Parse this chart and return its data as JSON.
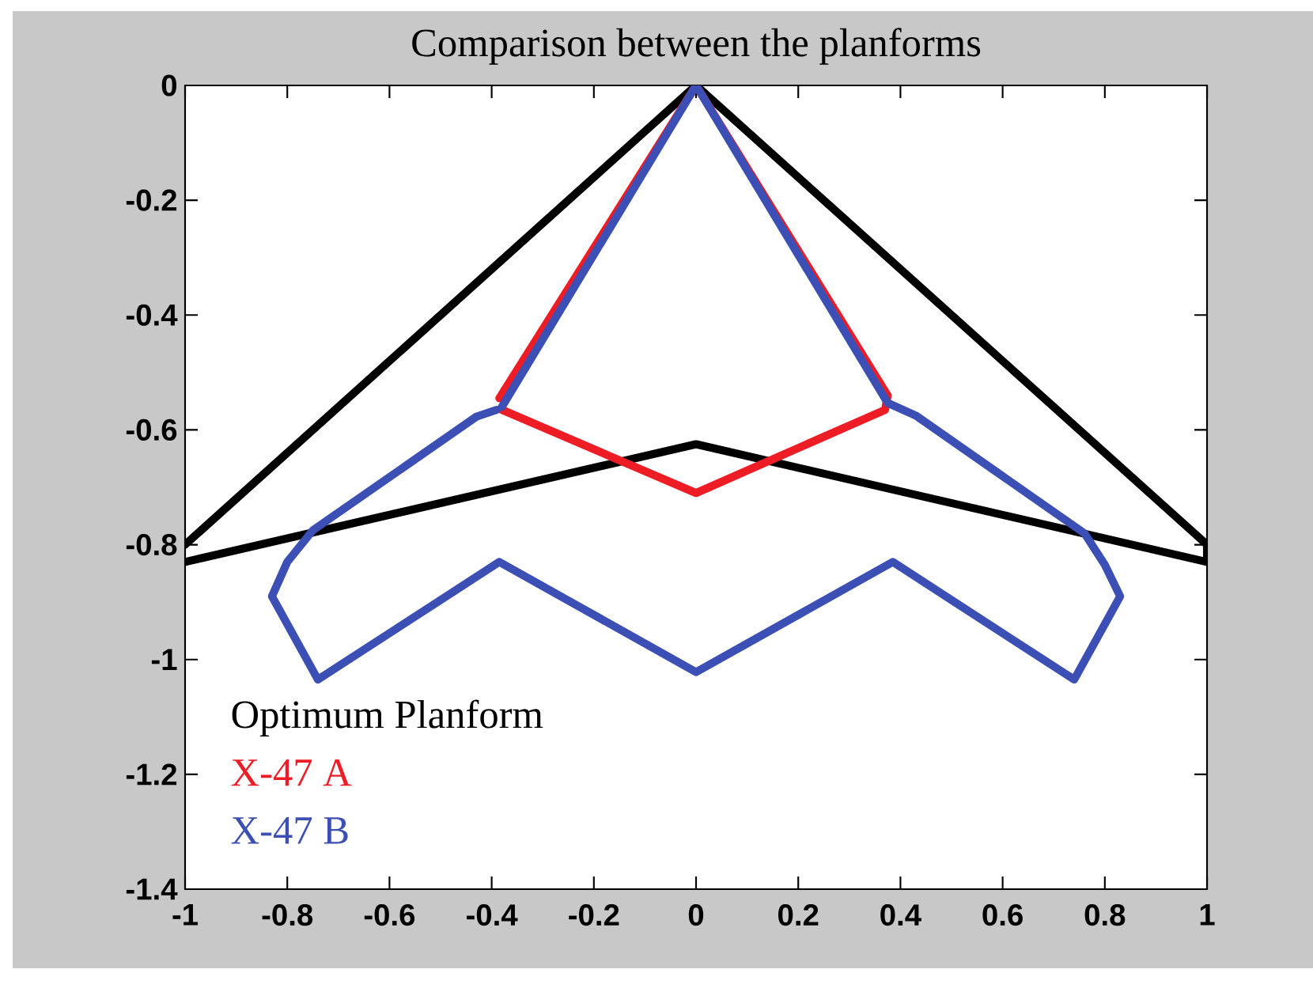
{
  "chart_data": {
    "type": "line",
    "title": "Comparison between the planforms",
    "xlim": [
      -1,
      1
    ],
    "ylim": [
      -1.4,
      0
    ],
    "xticks": [
      -1,
      -0.8,
      -0.6,
      -0.4,
      -0.2,
      0,
      0.2,
      0.4,
      0.6,
      0.8,
      1
    ],
    "yticks": [
      -1.4,
      -1.2,
      -1,
      -0.8,
      -0.6,
      -0.4,
      -0.2,
      0
    ],
    "legend": "bottom left",
    "line_style": "solid",
    "series": [
      {
        "name": "Optimum Planform",
        "color": "#000000",
        "x": [
          -1,
          0,
          1,
          1,
          0,
          -1
        ],
        "values": [
          -0.8,
          0,
          -0.8,
          -0.83,
          -0.625,
          -0.83
        ]
      },
      {
        "name": "X-47 A",
        "color": "#ee1c25",
        "x": [
          -0.38,
          0,
          0.37,
          0.375,
          0,
          -0.385
        ],
        "values": [
          -0.565,
          -0.71,
          -0.565,
          -0.54,
          0,
          -0.545
        ]
      },
      {
        "name": "X-47 B",
        "color": "#3c4fb4",
        "x": [
          -0.39,
          -0.43,
          -0.75,
          -0.8,
          -0.83,
          -0.74,
          -0.385,
          0,
          0.385,
          0.74,
          0.83,
          0.8,
          0.76,
          0.43,
          0.375,
          0,
          -0.38
        ],
        "values": [
          -0.565,
          -0.577,
          -0.775,
          -0.83,
          -0.89,
          -1.035,
          -0.83,
          -1.022,
          -0.83,
          -1.035,
          -0.89,
          -0.835,
          -0.78,
          -0.575,
          -0.553,
          0,
          -0.56
        ]
      }
    ]
  }
}
